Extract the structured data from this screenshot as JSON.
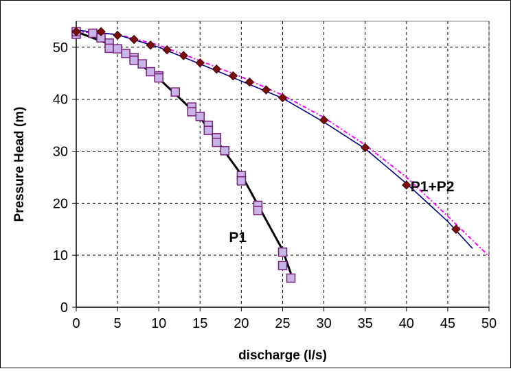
{
  "chart_data": {
    "type": "scatter",
    "xlabel": "discharge (l/s)",
    "ylabel": "Pressure Head (m)",
    "xlim": [
      0,
      50
    ],
    "ylim": [
      0,
      55
    ],
    "x_ticks": [
      0,
      5,
      10,
      15,
      20,
      25,
      30,
      35,
      40,
      45,
      50
    ],
    "y_ticks": [
      0,
      10,
      20,
      30,
      40,
      50
    ],
    "grid": true,
    "series_labels": [
      "P1",
      "P1+P2"
    ],
    "series": [
      {
        "name": "P1",
        "kind": "markers",
        "marker": "square",
        "color": "#c8b4e6",
        "stroke": "#7a1f7a",
        "points": [
          [
            0,
            52.5
          ],
          [
            0,
            53
          ],
          [
            2,
            52.7
          ],
          [
            3,
            51.8
          ],
          [
            4,
            50.8
          ],
          [
            4,
            49.8
          ],
          [
            5,
            49.7
          ],
          [
            6,
            48.8
          ],
          [
            7,
            48
          ],
          [
            7,
            47.5
          ],
          [
            8,
            46.8
          ],
          [
            9,
            45.3
          ],
          [
            10,
            44.5
          ],
          [
            10,
            44.1
          ],
          [
            12,
            41.4
          ],
          [
            14,
            38.5
          ],
          [
            14,
            37.6
          ],
          [
            15,
            36.7
          ],
          [
            16,
            35
          ],
          [
            16,
            34
          ],
          [
            17,
            32.6
          ],
          [
            17,
            31.7
          ],
          [
            18,
            30.1
          ],
          [
            20,
            25.3
          ],
          [
            20,
            24.3
          ],
          [
            22,
            19.6
          ],
          [
            22,
            18.6
          ],
          [
            25,
            10.6
          ],
          [
            25,
            8
          ],
          [
            26,
            5.6
          ]
        ]
      },
      {
        "name": "P1",
        "kind": "line",
        "color": "#000000",
        "points": [
          [
            0,
            53
          ],
          [
            5,
            50
          ],
          [
            10,
            44
          ],
          [
            15,
            36.5
          ],
          [
            20,
            25.5
          ],
          [
            25,
            11
          ],
          [
            26,
            6.5
          ]
        ]
      },
      {
        "name": "P1+P2",
        "kind": "markers",
        "marker": "diamond",
        "color": "#7a0c0c",
        "points": [
          [
            0,
            53
          ],
          [
            3,
            53
          ],
          [
            5,
            52.3
          ],
          [
            7,
            51.5
          ],
          [
            9,
            50.4
          ],
          [
            11,
            49.5
          ],
          [
            13,
            48.4
          ],
          [
            15,
            47
          ],
          [
            17,
            45.8
          ],
          [
            19,
            44.5
          ],
          [
            21,
            43.3
          ],
          [
            23,
            41.8
          ],
          [
            25,
            40.3
          ],
          [
            30,
            36
          ],
          [
            35,
            30.7
          ],
          [
            40,
            23.5
          ],
          [
            46,
            15
          ]
        ]
      },
      {
        "name": "P1+P2",
        "kind": "line",
        "color": "#00008b",
        "points": [
          [
            0,
            53.3
          ],
          [
            5,
            52.4
          ],
          [
            10,
            50
          ],
          [
            15,
            46.8
          ],
          [
            20,
            43.5
          ],
          [
            25,
            40.2
          ],
          [
            30,
            35.6
          ],
          [
            35,
            30.5
          ],
          [
            40,
            23.8
          ],
          [
            45,
            16.5
          ],
          [
            48,
            11.3
          ]
        ]
      },
      {
        "name": "P1+P2",
        "kind": "dashed-line",
        "color": "#ff00ff",
        "points": [
          [
            0,
            53
          ],
          [
            5,
            52.5
          ],
          [
            10,
            50.4
          ],
          [
            15,
            47.4
          ],
          [
            20,
            44.3
          ],
          [
            25,
            40.8
          ],
          [
            30,
            36.5
          ],
          [
            35,
            31.2
          ],
          [
            40,
            25
          ],
          [
            45,
            17.5
          ],
          [
            50,
            9.8
          ]
        ]
      }
    ]
  }
}
